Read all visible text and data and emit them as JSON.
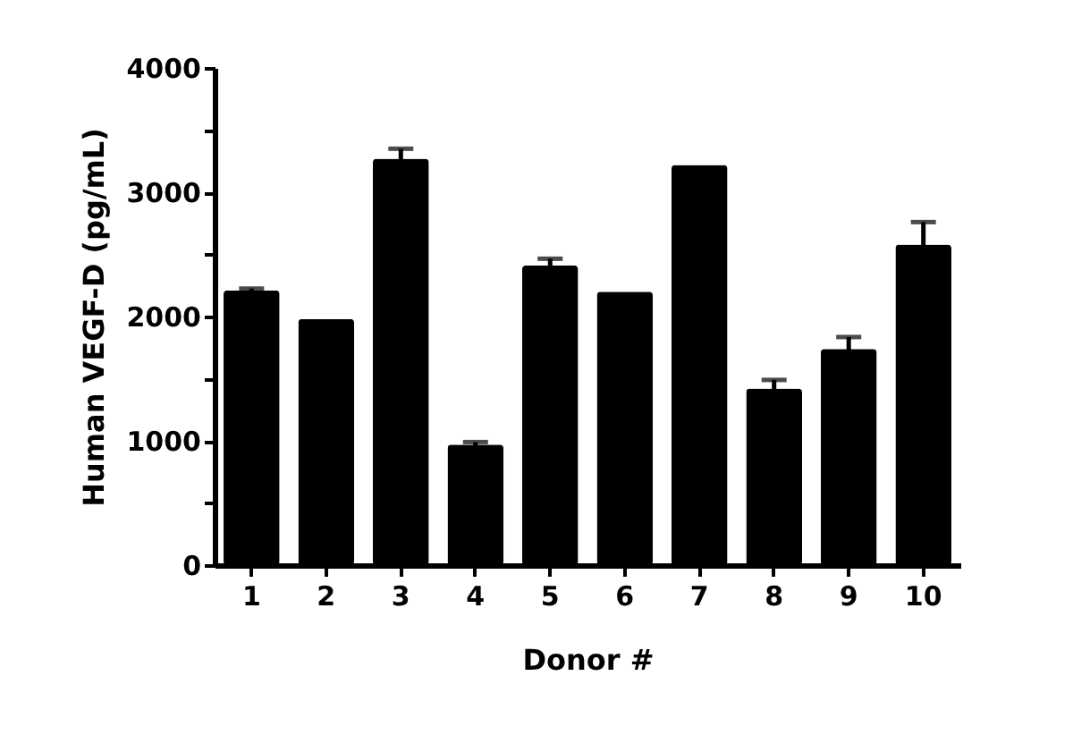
{
  "chart_data": {
    "type": "bar",
    "xlabel": "Donor #",
    "ylabel": "Human VEGF-D (pg/mL)",
    "categories": [
      "1",
      "2",
      "3",
      "4",
      "5",
      "6",
      "7",
      "8",
      "9",
      "10"
    ],
    "series": [
      {
        "color": "#000000",
        "values": [
          2210,
          1980,
          3270,
          970,
          2410,
          2200,
          3220,
          1420,
          1740,
          2580
        ],
        "errors": [
          15,
          null,
          80,
          20,
          55,
          null,
          null,
          70,
          95,
          180
        ]
      }
    ],
    "ylim": [
      0,
      4000
    ],
    "yticks": [
      0,
      {
        "value": 500,
        "label": null
      },
      1000,
      {
        "value": 1500,
        "label": null
      },
      2000,
      {
        "value": 2500,
        "label": null
      },
      3000,
      {
        "value": 3500,
        "label": null
      },
      4000
    ],
    "grid": false
  }
}
